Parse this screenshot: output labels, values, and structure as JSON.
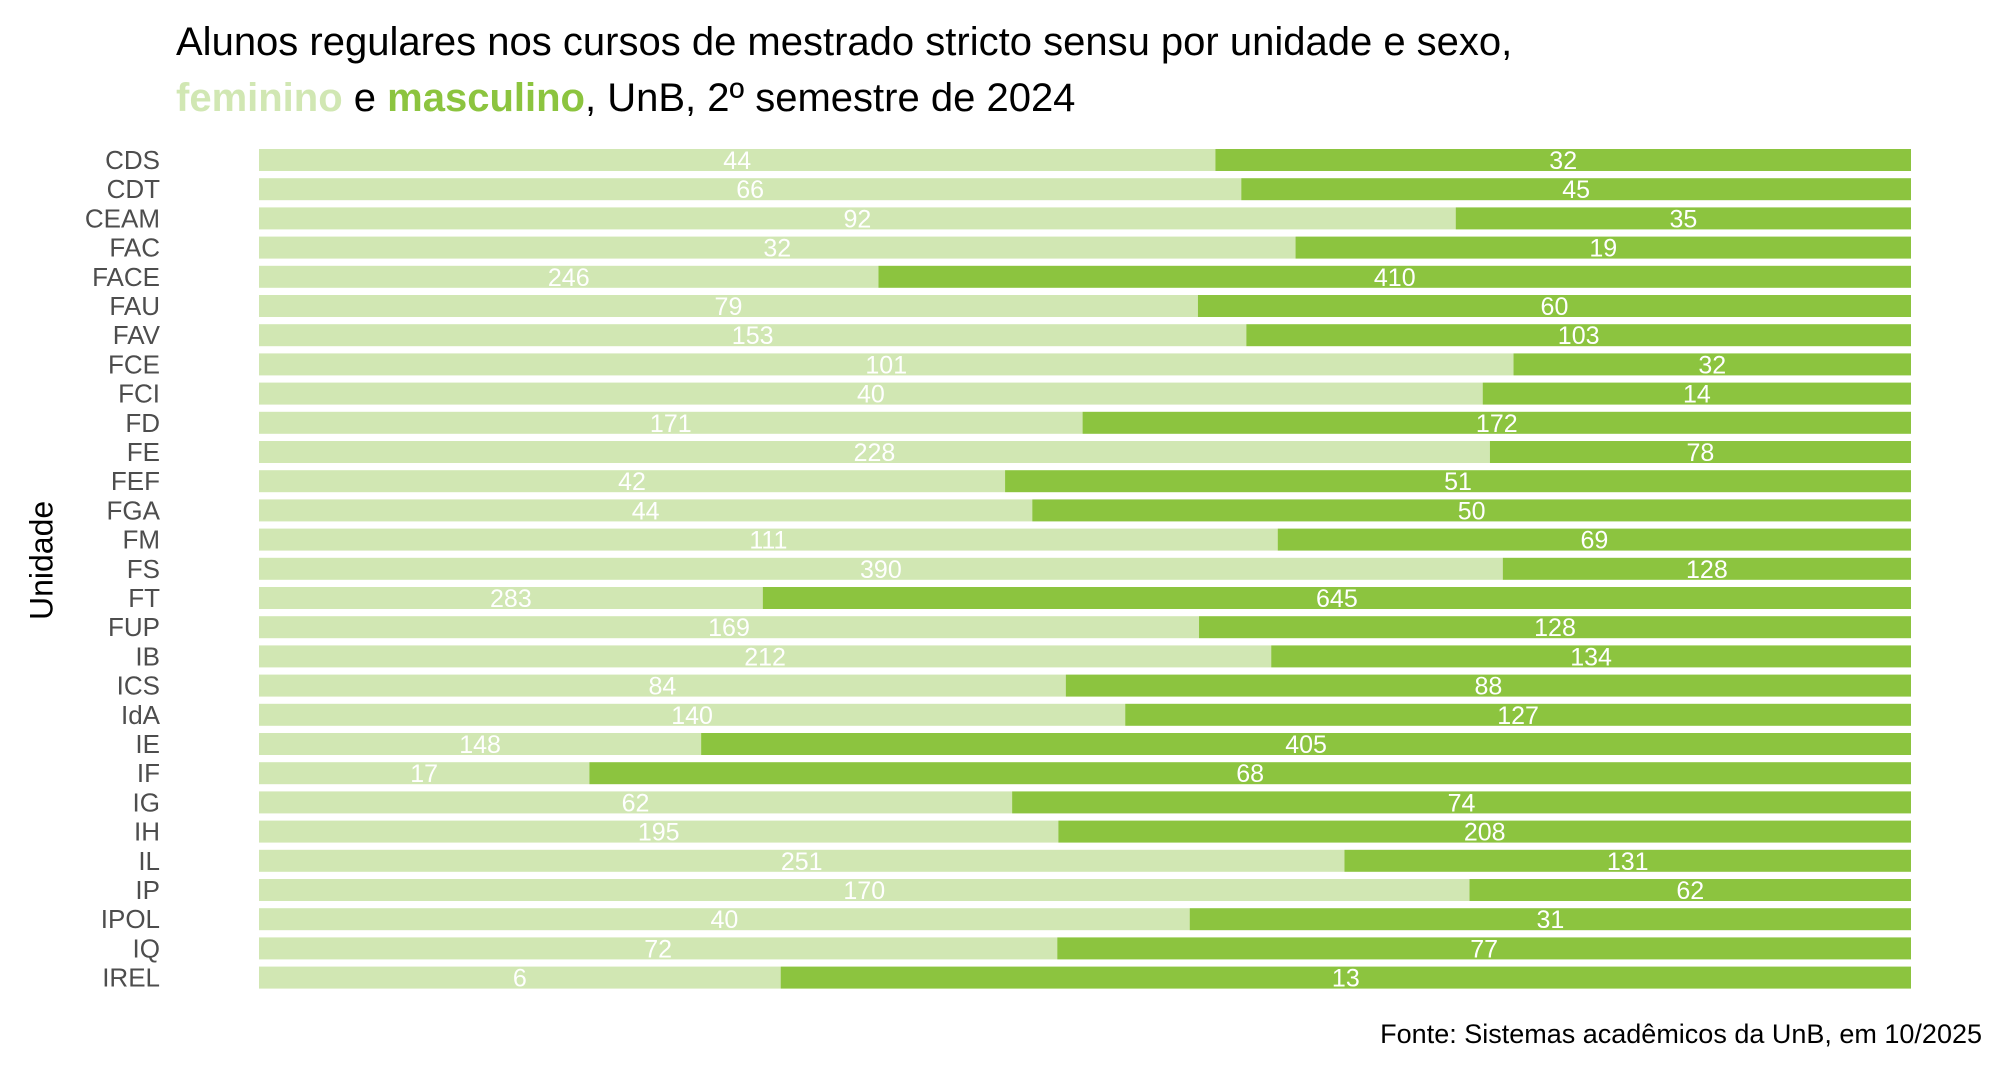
{
  "title": {
    "line1": "Alunos regulares nos cursos de mestrado stricto sensu por unidade e sexo,",
    "fem_word": "feminino",
    "connector": " e ",
    "masc_word": "masculino",
    "rest": ", UnB, 2º semestre de 2024"
  },
  "source": "Fonte: Sistemas acadêmicos da UnB, em 10/2025",
  "chart_data": {
    "type": "bar",
    "orientation": "horizontal",
    "stacked": "percent",
    "title": "Alunos regulares nos cursos de mestrado stricto sensu por unidade e sexo, feminino e masculino, UnB, 2º semestre de 2024",
    "ylabel": "Unidade",
    "xlabel": "",
    "grid": false,
    "legend": "none",
    "categories": [
      "CDS",
      "CDT",
      "CEAM",
      "FAC",
      "FACE",
      "FAU",
      "FAV",
      "FCE",
      "FCI",
      "FD",
      "FE",
      "FEF",
      "FGA",
      "FM",
      "FS",
      "FT",
      "FUP",
      "IB",
      "ICS",
      "IdA",
      "IE",
      "IF",
      "IG",
      "IH",
      "IL",
      "IP",
      "IPOL",
      "IQ",
      "IREL"
    ],
    "series": [
      {
        "name": "feminino",
        "color": "#d1e7b3",
        "values": [
          44,
          66,
          92,
          32,
          246,
          79,
          153,
          101,
          40,
          171,
          228,
          42,
          44,
          111,
          390,
          283,
          169,
          212,
          84,
          140,
          148,
          17,
          62,
          195,
          251,
          170,
          40,
          72,
          6
        ]
      },
      {
        "name": "masculino",
        "color": "#8cc43f",
        "values": [
          32,
          45,
          35,
          19,
          410,
          60,
          103,
          32,
          14,
          172,
          78,
          51,
          50,
          69,
          128,
          645,
          128,
          134,
          88,
          127,
          405,
          68,
          74,
          208,
          131,
          62,
          31,
          77,
          13
        ]
      }
    ]
  }
}
